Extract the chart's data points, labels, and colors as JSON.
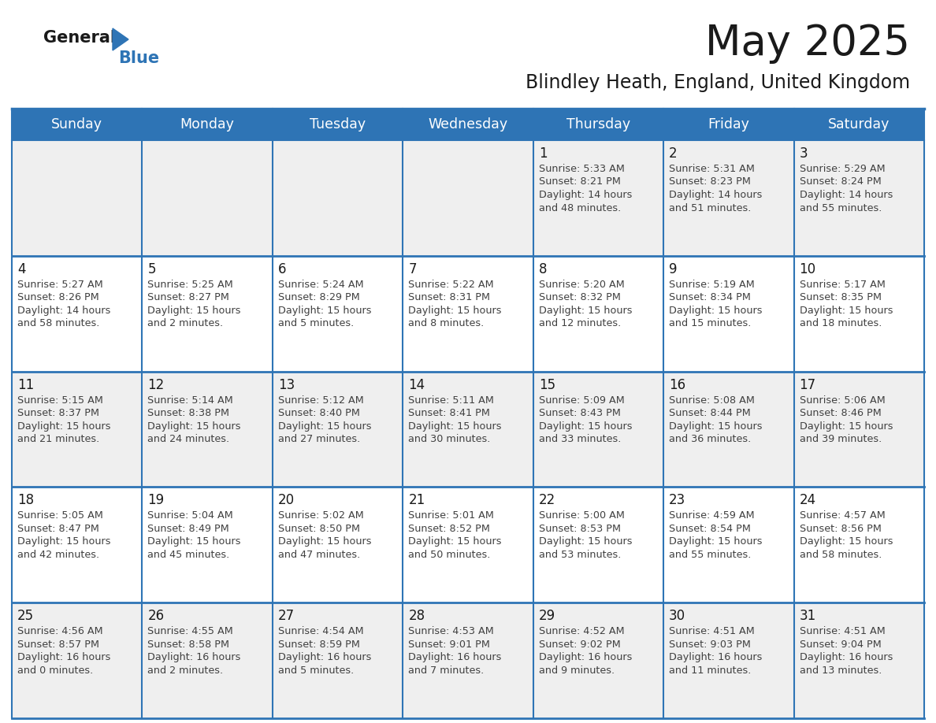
{
  "title": "May 2025",
  "subtitle": "Blindley Heath, England, United Kingdom",
  "header_bg": "#2E74B5",
  "header_text_color": "#FFFFFF",
  "day_names": [
    "Sunday",
    "Monday",
    "Tuesday",
    "Wednesday",
    "Thursday",
    "Friday",
    "Saturday"
  ],
  "row_bg": [
    "#EFEFEF",
    "#FFFFFF",
    "#EFEFEF",
    "#FFFFFF",
    "#EFEFEF"
  ],
  "cell_border_color": "#2E74B5",
  "text_color": "#404040",
  "date_color": "#1a1a1a",
  "logo_triangle_color": "#2E74B5",
  "calendar_data": [
    [
      null,
      null,
      null,
      null,
      {
        "day": 1,
        "sunrise": "5:33 AM",
        "sunset": "8:21 PM",
        "daylight_h": "14 hours",
        "daylight_m": "and 48 minutes."
      },
      {
        "day": 2,
        "sunrise": "5:31 AM",
        "sunset": "8:23 PM",
        "daylight_h": "14 hours",
        "daylight_m": "and 51 minutes."
      },
      {
        "day": 3,
        "sunrise": "5:29 AM",
        "sunset": "8:24 PM",
        "daylight_h": "14 hours",
        "daylight_m": "and 55 minutes."
      }
    ],
    [
      {
        "day": 4,
        "sunrise": "5:27 AM",
        "sunset": "8:26 PM",
        "daylight_h": "14 hours",
        "daylight_m": "and 58 minutes."
      },
      {
        "day": 5,
        "sunrise": "5:25 AM",
        "sunset": "8:27 PM",
        "daylight_h": "15 hours",
        "daylight_m": "and 2 minutes."
      },
      {
        "day": 6,
        "sunrise": "5:24 AM",
        "sunset": "8:29 PM",
        "daylight_h": "15 hours",
        "daylight_m": "and 5 minutes."
      },
      {
        "day": 7,
        "sunrise": "5:22 AM",
        "sunset": "8:31 PM",
        "daylight_h": "15 hours",
        "daylight_m": "and 8 minutes."
      },
      {
        "day": 8,
        "sunrise": "5:20 AM",
        "sunset": "8:32 PM",
        "daylight_h": "15 hours",
        "daylight_m": "and 12 minutes."
      },
      {
        "day": 9,
        "sunrise": "5:19 AM",
        "sunset": "8:34 PM",
        "daylight_h": "15 hours",
        "daylight_m": "and 15 minutes."
      },
      {
        "day": 10,
        "sunrise": "5:17 AM",
        "sunset": "8:35 PM",
        "daylight_h": "15 hours",
        "daylight_m": "and 18 minutes."
      }
    ],
    [
      {
        "day": 11,
        "sunrise": "5:15 AM",
        "sunset": "8:37 PM",
        "daylight_h": "15 hours",
        "daylight_m": "and 21 minutes."
      },
      {
        "day": 12,
        "sunrise": "5:14 AM",
        "sunset": "8:38 PM",
        "daylight_h": "15 hours",
        "daylight_m": "and 24 minutes."
      },
      {
        "day": 13,
        "sunrise": "5:12 AM",
        "sunset": "8:40 PM",
        "daylight_h": "15 hours",
        "daylight_m": "and 27 minutes."
      },
      {
        "day": 14,
        "sunrise": "5:11 AM",
        "sunset": "8:41 PM",
        "daylight_h": "15 hours",
        "daylight_m": "and 30 minutes."
      },
      {
        "day": 15,
        "sunrise": "5:09 AM",
        "sunset": "8:43 PM",
        "daylight_h": "15 hours",
        "daylight_m": "and 33 minutes."
      },
      {
        "day": 16,
        "sunrise": "5:08 AM",
        "sunset": "8:44 PM",
        "daylight_h": "15 hours",
        "daylight_m": "and 36 minutes."
      },
      {
        "day": 17,
        "sunrise": "5:06 AM",
        "sunset": "8:46 PM",
        "daylight_h": "15 hours",
        "daylight_m": "and 39 minutes."
      }
    ],
    [
      {
        "day": 18,
        "sunrise": "5:05 AM",
        "sunset": "8:47 PM",
        "daylight_h": "15 hours",
        "daylight_m": "and 42 minutes."
      },
      {
        "day": 19,
        "sunrise": "5:04 AM",
        "sunset": "8:49 PM",
        "daylight_h": "15 hours",
        "daylight_m": "and 45 minutes."
      },
      {
        "day": 20,
        "sunrise": "5:02 AM",
        "sunset": "8:50 PM",
        "daylight_h": "15 hours",
        "daylight_m": "and 47 minutes."
      },
      {
        "day": 21,
        "sunrise": "5:01 AM",
        "sunset": "8:52 PM",
        "daylight_h": "15 hours",
        "daylight_m": "and 50 minutes."
      },
      {
        "day": 22,
        "sunrise": "5:00 AM",
        "sunset": "8:53 PM",
        "daylight_h": "15 hours",
        "daylight_m": "and 53 minutes."
      },
      {
        "day": 23,
        "sunrise": "4:59 AM",
        "sunset": "8:54 PM",
        "daylight_h": "15 hours",
        "daylight_m": "and 55 minutes."
      },
      {
        "day": 24,
        "sunrise": "4:57 AM",
        "sunset": "8:56 PM",
        "daylight_h": "15 hours",
        "daylight_m": "and 58 minutes."
      }
    ],
    [
      {
        "day": 25,
        "sunrise": "4:56 AM",
        "sunset": "8:57 PM",
        "daylight_h": "16 hours",
        "daylight_m": "and 0 minutes."
      },
      {
        "day": 26,
        "sunrise": "4:55 AM",
        "sunset": "8:58 PM",
        "daylight_h": "16 hours",
        "daylight_m": "and 2 minutes."
      },
      {
        "day": 27,
        "sunrise": "4:54 AM",
        "sunset": "8:59 PM",
        "daylight_h": "16 hours",
        "daylight_m": "and 5 minutes."
      },
      {
        "day": 28,
        "sunrise": "4:53 AM",
        "sunset": "9:01 PM",
        "daylight_h": "16 hours",
        "daylight_m": "and 7 minutes."
      },
      {
        "day": 29,
        "sunrise": "4:52 AM",
        "sunset": "9:02 PM",
        "daylight_h": "16 hours",
        "daylight_m": "and 9 minutes."
      },
      {
        "day": 30,
        "sunrise": "4:51 AM",
        "sunset": "9:03 PM",
        "daylight_h": "16 hours",
        "daylight_m": "and 11 minutes."
      },
      {
        "day": 31,
        "sunrise": "4:51 AM",
        "sunset": "9:04 PM",
        "daylight_h": "16 hours",
        "daylight_m": "and 13 minutes."
      }
    ]
  ]
}
